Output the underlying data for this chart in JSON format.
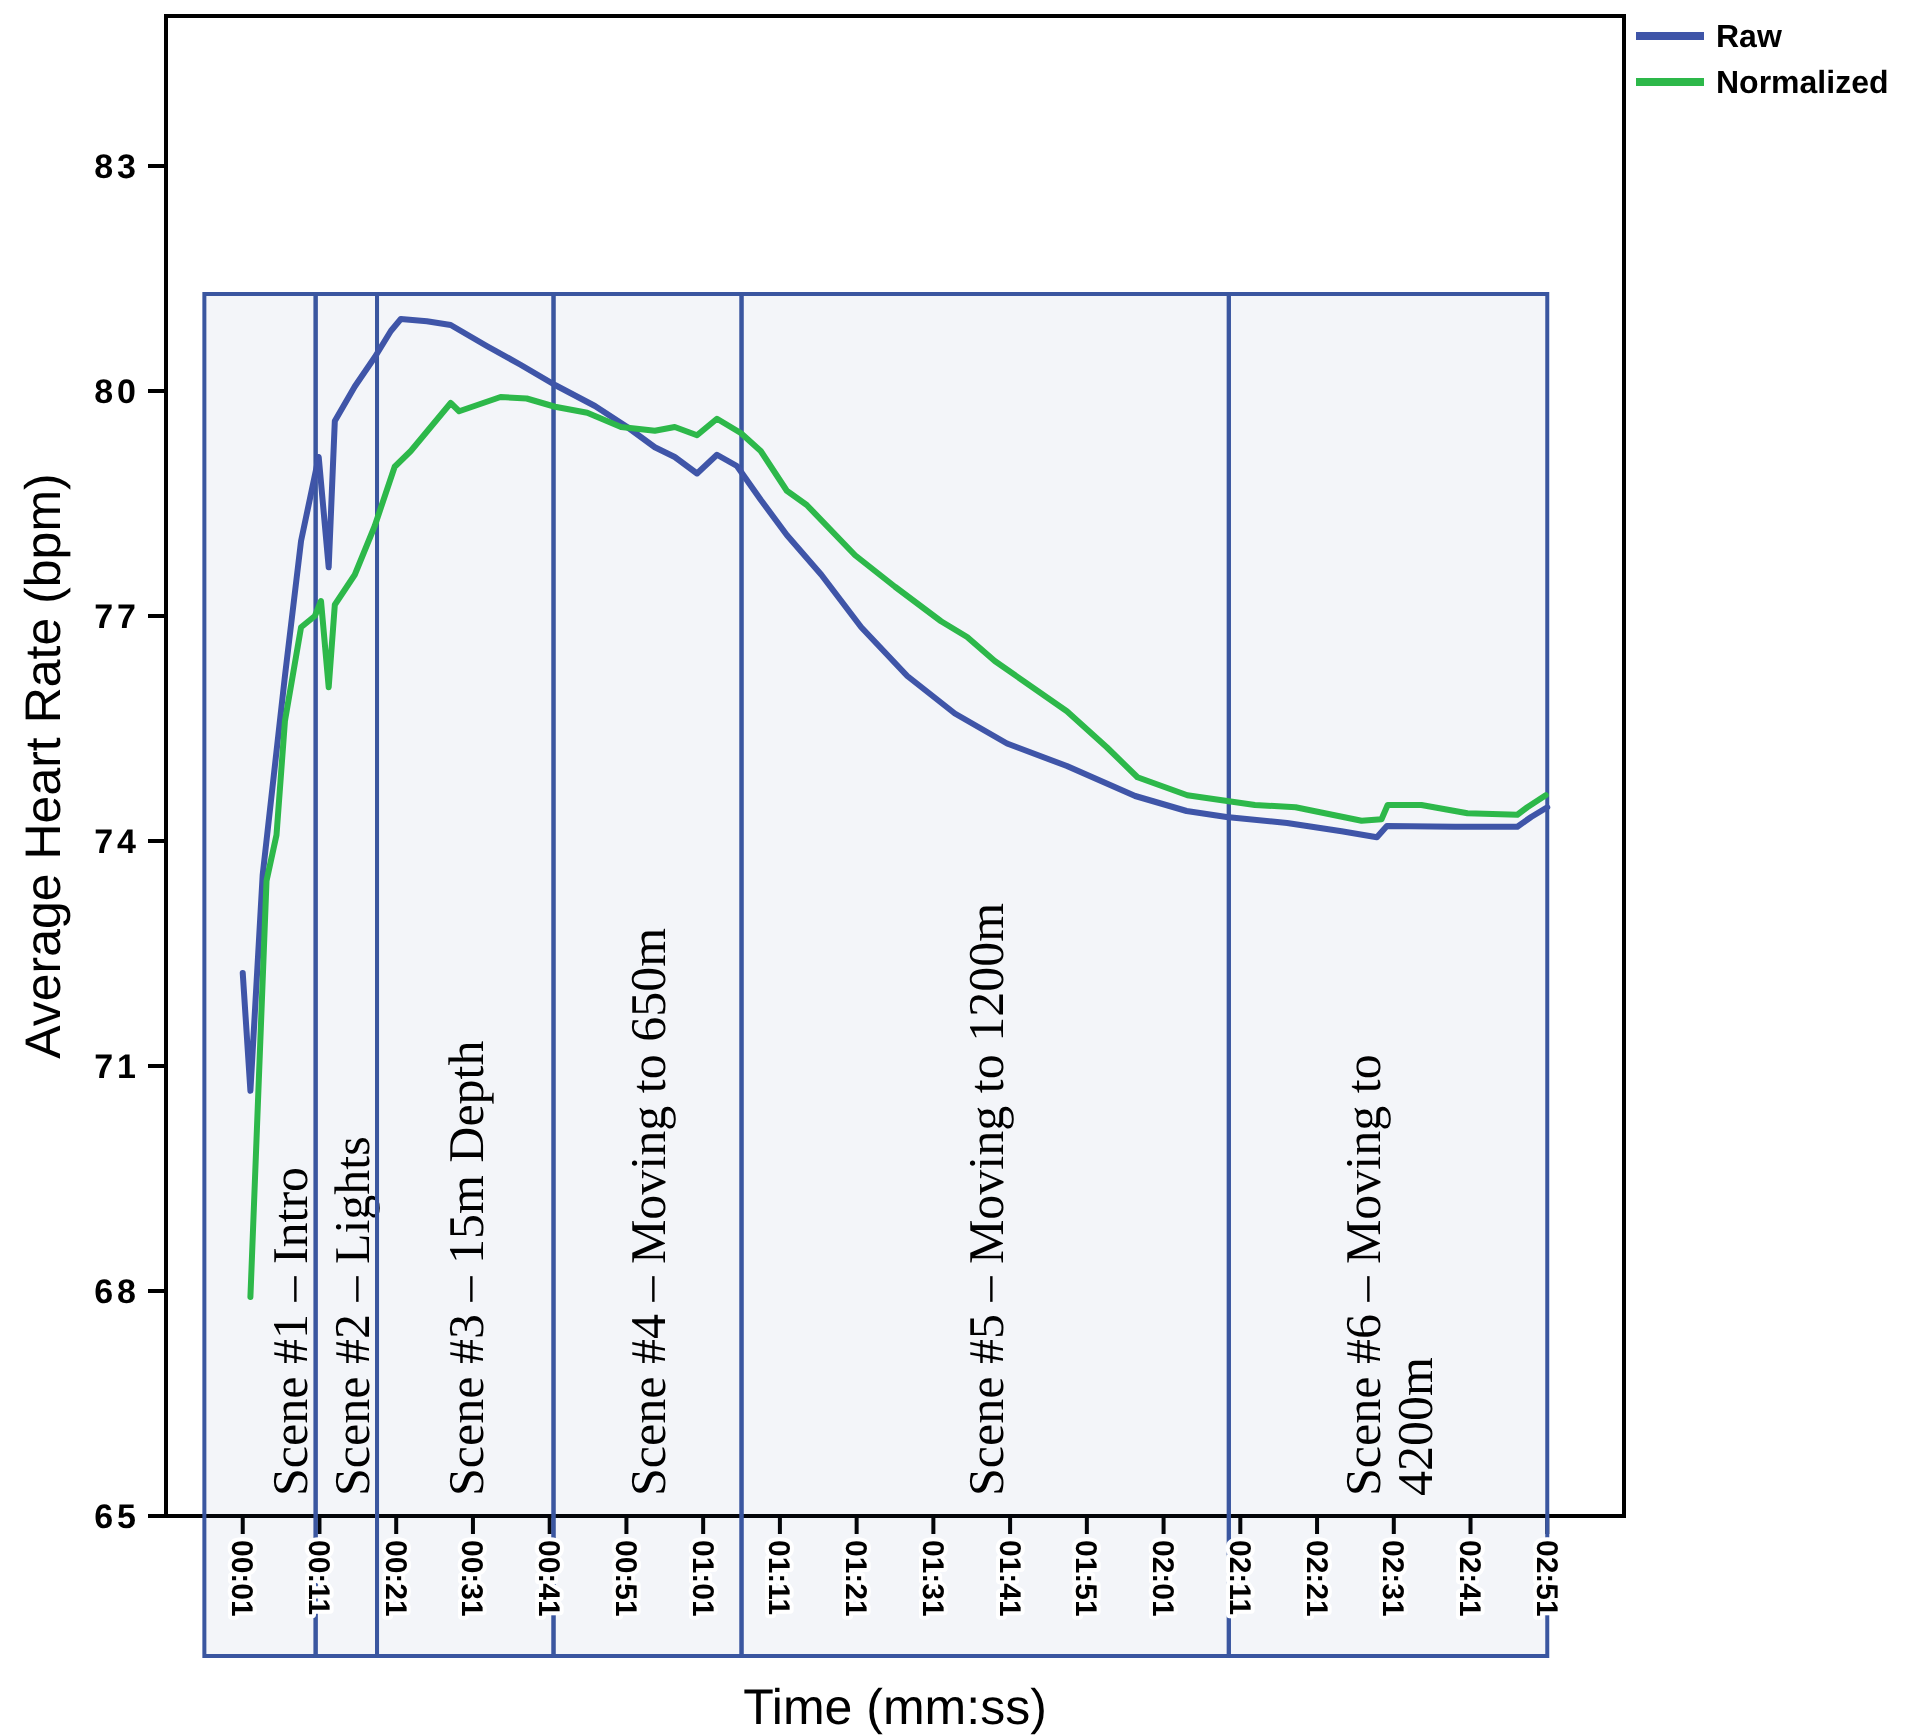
{
  "chart_data": {
    "type": "line",
    "xlabel": "Time (mm:ss)",
    "ylabel": "Average Heart Rate (bpm)",
    "xlim": [
      -9,
      181
    ],
    "ylim": [
      65,
      85
    ],
    "xticks": [
      {
        "value": 1,
        "label": "00:01"
      },
      {
        "value": 11,
        "label": "00:11"
      },
      {
        "value": 21,
        "label": "00:21"
      },
      {
        "value": 31,
        "label": "00:31"
      },
      {
        "value": 41,
        "label": "00:41"
      },
      {
        "value": 51,
        "label": "00:51"
      },
      {
        "value": 61,
        "label": "01:01"
      },
      {
        "value": 71,
        "label": "01:11"
      },
      {
        "value": 81,
        "label": "01:21"
      },
      {
        "value": 91,
        "label": "01:31"
      },
      {
        "value": 101,
        "label": "01:41"
      },
      {
        "value": 111,
        "label": "01:51"
      },
      {
        "value": 121,
        "label": "02:01"
      },
      {
        "value": 131,
        "label": "02:11"
      },
      {
        "value": 141,
        "label": "02:21"
      },
      {
        "value": 151,
        "label": "02:31"
      },
      {
        "value": 161,
        "label": "02:41"
      },
      {
        "value": 171,
        "label": "02:51"
      }
    ],
    "yticks": [
      65,
      68,
      71,
      74,
      77,
      80,
      83
    ],
    "legend": "top right",
    "grid": false,
    "marker": "none",
    "line_style": "solid",
    "series": [
      {
        "name": "Raw",
        "color": "#3f55a8",
        "x": [
          1,
          2,
          3.6,
          6.5,
          8.6,
          10.9,
          12.2,
          13,
          15.6,
          18.2,
          20.3,
          21.6,
          25,
          28.1,
          32.8,
          37.2,
          41.7,
          46.9,
          51.1,
          54.7,
          57.3,
          60.2,
          62.8,
          65.4,
          68.5,
          71.9,
          76.4,
          81.6,
          87.6,
          93.8,
          100.6,
          108.4,
          117.3,
          124,
          129.2,
          137.1,
          144.2,
          148.8,
          150.1,
          159,
          167.1,
          168.9,
          171
        ],
        "values": [
          72.24,
          70.67,
          73.55,
          76.2,
          78,
          79.12,
          77.65,
          79.6,
          80.06,
          80.45,
          80.8,
          80.96,
          80.93,
          80.88,
          80.6,
          80.35,
          80.08,
          79.8,
          79.52,
          79.25,
          79.12,
          78.9,
          79.15,
          79,
          78.55,
          78.08,
          77.55,
          76.85,
          76.2,
          75.7,
          75.3,
          75,
          74.6,
          74.4,
          74.32,
          74.24,
          74.13,
          74.05,
          74.2,
          74.19,
          74.19,
          74.32,
          74.45
        ]
      },
      {
        "name": "Normalized",
        "color": "#2db84a",
        "x": [
          2,
          4.1,
          5.4,
          6.5,
          8.6,
          10.4,
          11.2,
          12.2,
          13,
          15.6,
          18.2,
          20.8,
          22.9,
          28.1,
          29.2,
          34.6,
          38,
          41.7,
          45.9,
          50.3,
          54.7,
          57.3,
          60.2,
          62.8,
          65.9,
          68.5,
          71.9,
          74.5,
          80.8,
          86,
          92,
          95.4,
          99,
          108.4,
          113.6,
          117.6,
          124.1,
          132.9,
          138.2,
          146.8,
          149.4,
          150.2,
          154.6,
          160.6,
          167.1,
          168.4,
          170.8
        ],
        "values": [
          67.92,
          73.47,
          74.08,
          75.6,
          76.85,
          77,
          77.2,
          76.05,
          77.15,
          77.55,
          78.2,
          78.99,
          79.2,
          79.84,
          79.73,
          79.92,
          79.9,
          79.79,
          79.71,
          79.52,
          79.47,
          79.52,
          79.41,
          79.63,
          79.44,
          79.2,
          78.67,
          78.48,
          77.81,
          77.39,
          76.93,
          76.72,
          76.4,
          75.73,
          75.25,
          74.85,
          74.61,
          74.48,
          74.45,
          74.27,
          74.29,
          74.48,
          74.48,
          74.37,
          74.35,
          74.45,
          74.61
        ]
      }
    ],
    "bands": [
      {
        "axis": "x",
        "from": -4,
        "to": 10.5,
        "label": "Scene #1 – Intro",
        "color": "#3a56a0"
      },
      {
        "axis": "x",
        "from": 10.5,
        "to": 18.5,
        "label": "Scene #2 – Lights",
        "color": "#3a56a0"
      },
      {
        "axis": "x",
        "from": 18.5,
        "to": 41.5,
        "label": "Scene #3 – 15m Depth",
        "color": "#3a56a0"
      },
      {
        "axis": "x",
        "from": 41.5,
        "to": 66,
        "label": "Scene #4 – Moving to 650m",
        "color": "#3a56a0"
      },
      {
        "axis": "x",
        "from": 66,
        "to": 129.5,
        "label": "Scene #5 – Moving to 1200m",
        "color": "#3a56a0"
      },
      {
        "axis": "x",
        "from": 129.5,
        "to": 171,
        "label": "Scene #6 – Moving to\n4200m",
        "color": "#3a56a0"
      }
    ]
  }
}
